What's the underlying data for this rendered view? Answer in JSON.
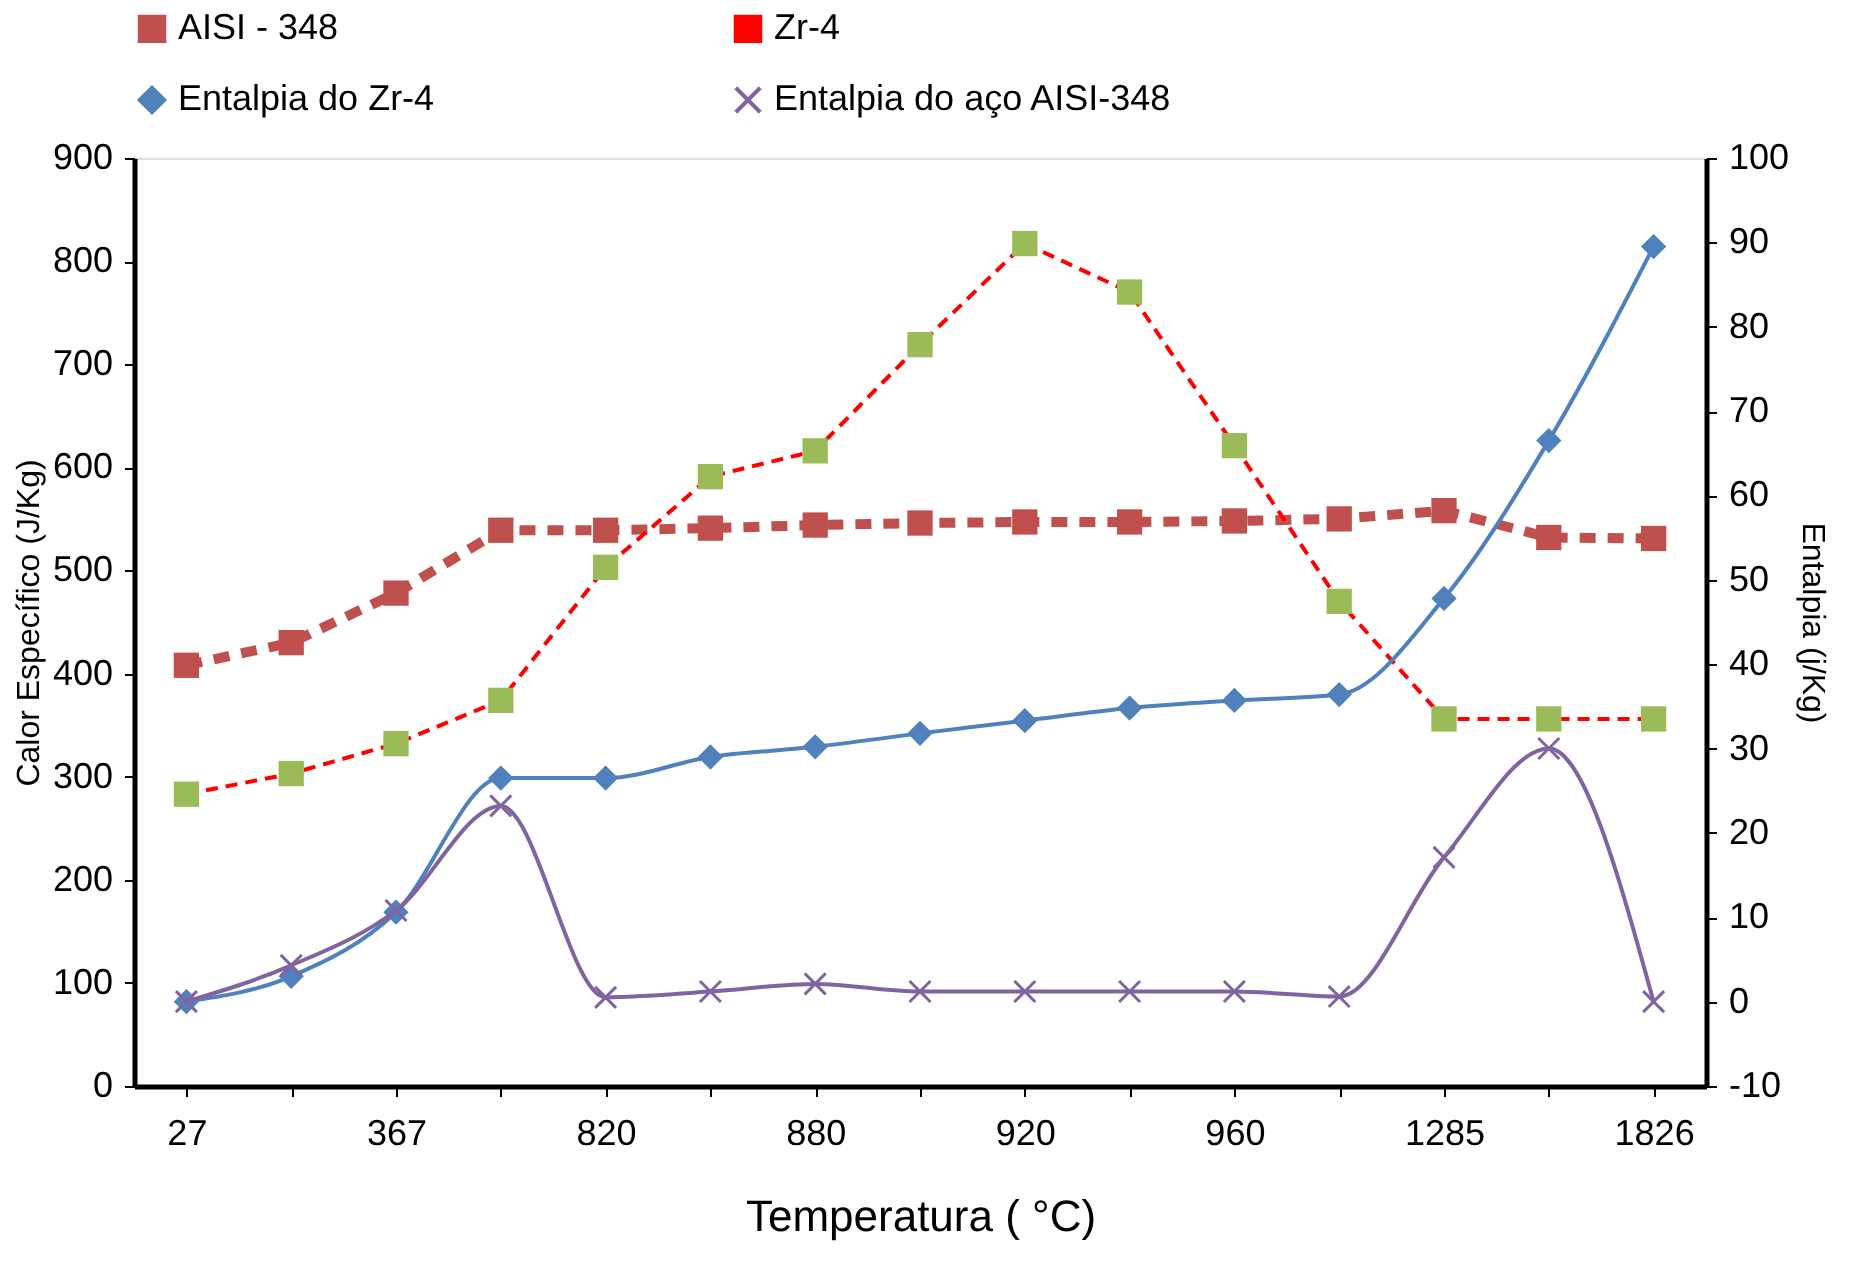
{
  "chart_data": {
    "type": "line",
    "categories": [
      "27",
      null,
      "367",
      null,
      "820",
      null,
      "880",
      null,
      "920",
      null,
      "960",
      null,
      "1285",
      null,
      "1826"
    ],
    "xlabel": "Temperatura ( °C)",
    "ylabel": "Calor Específico (J/Kg)",
    "y2label": "Entalpia (j/Kg)",
    "ylim": [
      0,
      900
    ],
    "yticks": [
      0,
      100,
      200,
      300,
      400,
      500,
      600,
      700,
      800,
      900
    ],
    "y2lim": [
      -10,
      100
    ],
    "y2ticks": [
      -10,
      0,
      10,
      20,
      30,
      40,
      50,
      60,
      70,
      80,
      90,
      100
    ],
    "grid": false,
    "legend": "top",
    "series": [
      {
        "name": "AISI - 348",
        "color": "#c0504d",
        "marker": "square",
        "line_style": "dashed",
        "values": [
          408,
          430,
          478,
          539,
          539,
          541,
          544,
          546,
          547,
          547,
          548,
          550,
          558,
          532,
          531
        ]
      },
      {
        "name": "Zr-4",
        "color": "#ff0000",
        "colors": [
          "#9bbb59",
          "#9bbb59",
          "#9bbb59",
          "#9bbb59",
          "#9bbb59",
          "#9bbb59",
          "#9bbb59",
          "#9bbb59",
          "#9bbb59",
          "#9bbb59",
          "#9bbb59",
          "#9bbb59",
          "#9bbb59",
          "#9bbb59",
          "#9bbb59"
        ],
        "marker": "square",
        "line_style": "dashed",
        "values": [
          283,
          303,
          332,
          374,
          503,
          591,
          616,
          719,
          817,
          770,
          621,
          470,
          356,
          356,
          356
        ]
      },
      {
        "name": "Entalpia do  Zr-4",
        "color": "#4f81bd",
        "marker": "diamond",
        "line_style": "solid",
        "axis": "y2",
        "values": [
          0,
          3.0,
          10.6,
          26.5,
          26.5,
          29.0,
          30.2,
          31.8,
          33.3,
          34.8,
          35.7,
          36.4,
          47.8,
          66.5,
          89.5
        ]
      },
      {
        "name": "Entalpia do aço AISI-348",
        "color": "#8064a2",
        "marker": "cross",
        "line_style": "solid",
        "axis": "y2",
        "values": [
          0,
          4.3,
          10.8,
          23.2,
          0.5,
          1.2,
          2.1,
          1.2,
          1.2,
          1.2,
          1.2,
          0.6,
          17.1,
          30,
          0
        ]
      }
    ]
  }
}
